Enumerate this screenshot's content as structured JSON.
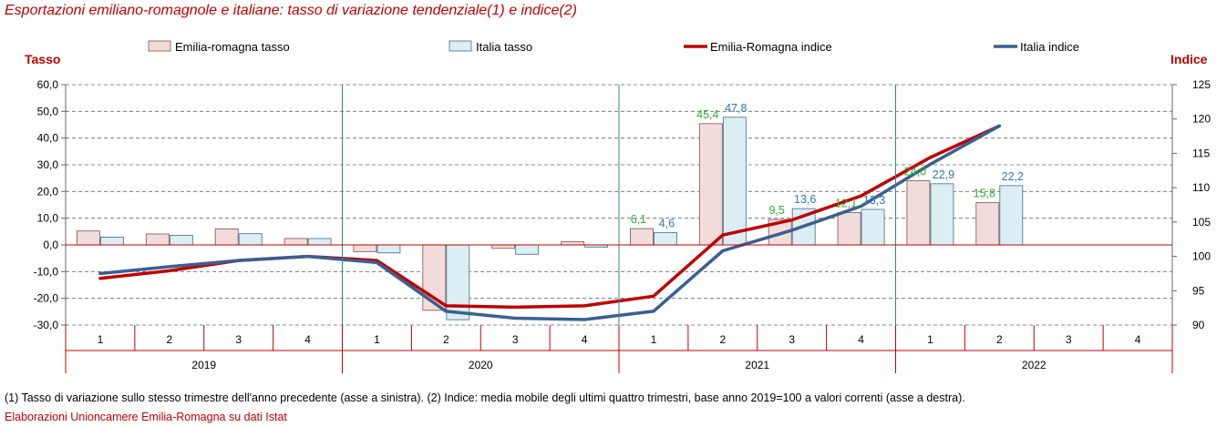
{
  "title": "Esportazioni emiliano-romagnole e italiane: tasso di variazione tendenziale(1) e indice(2)",
  "note": "(1) Tasso di variazione sullo stesso trimestre dell'anno precedente (asse a sinistra). (2) Indice: media mobile degli ultimi quattro trimestri, base anno 2019=100 a valori correnti (asse a destra).",
  "source": "Elaborazioni Unioncamere Emilia-Romagna su dati Istat",
  "colors": {
    "er_bar_fill": "#f2dcdb",
    "er_bar_stroke": "#7f4e4e",
    "it_bar_fill": "#dbeef4",
    "it_bar_stroke": "#3a6b8a",
    "er_line": "#c00000",
    "it_line": "#3a5f91",
    "er_label": "#33aa33",
    "it_label": "#2e75b6",
    "axis_title": "#c00000",
    "vline": "#31859c"
  },
  "chart_data": {
    "type": "bar",
    "left_axis_title": "Tasso",
    "right_axis_title": "Indice",
    "left_ylim": [
      -30,
      60
    ],
    "left_ticks": [
      "60,0",
      "50,0",
      "40,0",
      "30,0",
      "20,0",
      "10,0",
      "0,0",
      "-10,0",
      "-20,0",
      "-30,0"
    ],
    "right_ylim": [
      90,
      125
    ],
    "right_ticks": [
      "125",
      "120",
      "115",
      "110",
      "105",
      "100",
      "95",
      "90"
    ],
    "grid": true,
    "legend_position": "top",
    "years": [
      "2019",
      "2020",
      "2021",
      "2022"
    ],
    "quarters": [
      "1",
      "2",
      "3",
      "4",
      "1",
      "2",
      "3",
      "4",
      "1",
      "2",
      "3",
      "4",
      "1",
      "2",
      "3",
      "4"
    ],
    "series": [
      {
        "name": "Emilia-romagna tasso",
        "kind": "bar",
        "axis": "left",
        "values": [
          5.2,
          4.1,
          6.0,
          2.4,
          -2.5,
          -24.5,
          -1.3,
          1.2,
          6.1,
          45.4,
          9.5,
          12.1,
          24.0,
          15.8,
          null,
          null
        ],
        "labels": [
          "",
          "",
          "",
          "",
          "",
          "",
          "",
          "",
          "6,1",
          "45,4",
          "9,5",
          "12,1",
          "24,0",
          "15,8",
          "",
          ""
        ]
      },
      {
        "name": "Italia tasso",
        "kind": "bar",
        "axis": "left",
        "values": [
          2.9,
          3.6,
          4.2,
          2.4,
          -3.0,
          -28.0,
          -3.5,
          -0.8,
          4.6,
          47.8,
          13.6,
          13.3,
          22.9,
          22.2,
          null,
          null
        ],
        "labels": [
          "",
          "",
          "",
          "",
          "",
          "",
          "",
          "",
          "4,6",
          "47,8",
          "13,6",
          "13,3",
          "22,9",
          "22,2",
          "",
          ""
        ]
      },
      {
        "name": "Emilia-Romagna indice",
        "kind": "line",
        "axis": "right",
        "values": [
          96.8,
          97.9,
          99.4,
          100.0,
          99.4,
          92.8,
          92.6,
          92.8,
          94.2,
          103.1,
          105.3,
          108.8,
          114.4,
          119.0,
          null,
          null
        ]
      },
      {
        "name": "Italia indice",
        "kind": "line",
        "axis": "right",
        "values": [
          97.5,
          98.5,
          99.4,
          100.0,
          99.1,
          92.0,
          91.0,
          90.8,
          92.0,
          100.8,
          103.8,
          107.3,
          113.4,
          119.0,
          null,
          null
        ]
      }
    ]
  }
}
